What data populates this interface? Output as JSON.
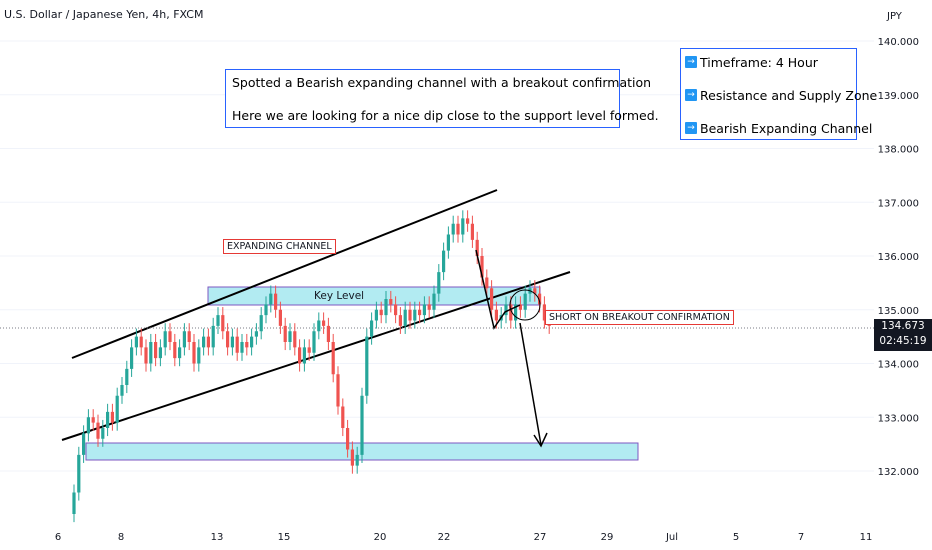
{
  "header": {
    "title": "U.S. Dollar / Japanese Yen, 4h, FXCM"
  },
  "notes": {
    "line1": "Spotted a Bearish expanding channel with a breakout confirmation",
    "line2": "Here we are looking for a nice dip close to the support level formed."
  },
  "legend": {
    "items": [
      "Timeframe: 4 Hour",
      "Resistance and Supply Zone",
      "Bearish Expanding Channel"
    ],
    "icon": "arrow-right-icon"
  },
  "labels": {
    "expanding_channel": "EXPANDING CHANNEL",
    "key_level": "Key Level",
    "short_label": "SHORT ON BREAKOUT CONFIRMATION"
  },
  "price_axis": {
    "currency": "JPY",
    "last_price": "134.673",
    "countdown": "02:45:19"
  },
  "colors": {
    "up": "#26a69a",
    "down": "#ef5350",
    "zone_fill": "#b2ebf2",
    "zone_border": "#7e57c2",
    "note_border": "#2962ff",
    "tag_border": "#e53935",
    "line": "#000000"
  },
  "chart_data": {
    "type": "candlestick",
    "y_ticks": [
      "140.000",
      "139.000",
      "138.000",
      "137.000",
      "136.000",
      "135.000",
      "134.000",
      "133.000",
      "132.000"
    ],
    "ylim": [
      131.3,
      140.4
    ],
    "x_ticks": [
      "6",
      "8",
      "13",
      "15",
      "20",
      "22",
      "27",
      "29",
      "Jul",
      "5",
      "7",
      "11"
    ],
    "closes": [
      131.6,
      132.3,
      132.7,
      133.0,
      132.9,
      132.6,
      132.8,
      133.1,
      132.9,
      133.4,
      133.6,
      133.9,
      134.3,
      134.5,
      134.3,
      134.0,
      134.4,
      134.1,
      134.3,
      134.6,
      134.4,
      134.1,
      134.3,
      134.6,
      134.4,
      134.0,
      134.3,
      134.5,
      134.3,
      134.7,
      134.9,
      134.6,
      134.3,
      134.5,
      134.2,
      134.4,
      134.3,
      134.5,
      134.6,
      134.9,
      135.1,
      135.3,
      135.0,
      134.7,
      134.4,
      134.6,
      134.3,
      134.0,
      134.3,
      134.2,
      134.6,
      134.8,
      134.7,
      134.4,
      133.8,
      133.2,
      132.8,
      132.4,
      132.1,
      132.3,
      133.4,
      134.5,
      134.8,
      135.0,
      134.9,
      135.2,
      135.1,
      134.9,
      134.7,
      135.0,
      134.8,
      135.0,
      134.9,
      135.1,
      135.0,
      135.3,
      135.7,
      136.1,
      136.4,
      136.6,
      136.4,
      136.7,
      136.6,
      136.3,
      136.0,
      135.6,
      135.4,
      135.0,
      134.8,
      134.9,
      135.1,
      134.8,
      135.1,
      135.0,
      135.3,
      135.4,
      135.3,
      135.1,
      134.8,
      134.7
    ]
  }
}
